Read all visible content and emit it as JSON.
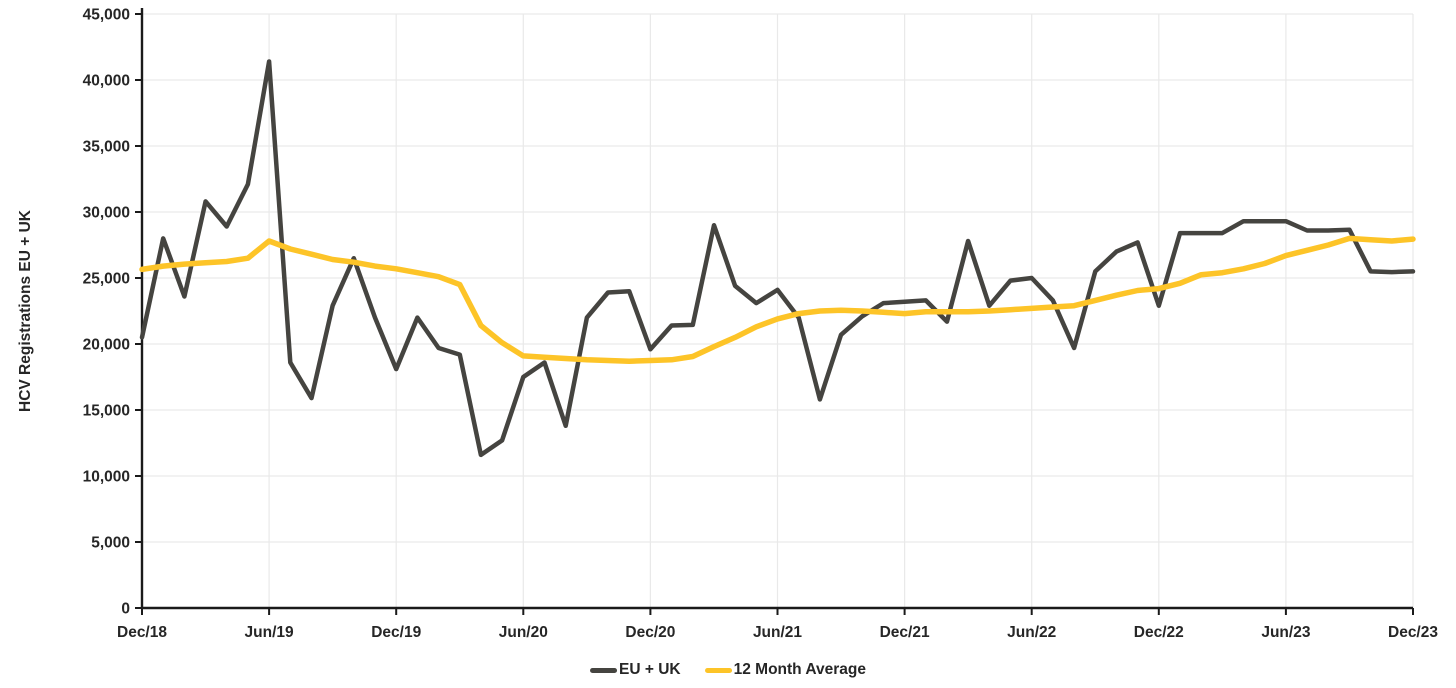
{
  "chart_data": {
    "type": "line",
    "title": "",
    "xlabel": "",
    "ylabel": "HCV Registrations  EU + UK",
    "ylim": [
      0,
      45000
    ],
    "ytick_step": 5000,
    "ytick_labels": [
      "0",
      "5,000",
      "10,000",
      "15,000",
      "20,000",
      "25,000",
      "30,000",
      "35,000",
      "40,000",
      "45,000"
    ],
    "xtick_every": 6,
    "xtick_labels": [
      "Dec/18",
      "Jun/19",
      "Dec/19",
      "Jun/20",
      "Dec/20",
      "Jun/21",
      "Dec/21",
      "Jun/22",
      "Dec/22",
      "Jun/23",
      "Dec/23"
    ],
    "grid": true,
    "grid_color": "#e9e9e9",
    "axis_color": "#1a1a1a",
    "legend_position": "bottom-center",
    "x": [
      "Dec/18",
      "Jan/19",
      "Feb/19",
      "Mar/19",
      "Apr/19",
      "May/19",
      "Jun/19",
      "Jul/19",
      "Aug/19",
      "Sep/19",
      "Oct/19",
      "Nov/19",
      "Dec/19",
      "Jan/20",
      "Feb/20",
      "Mar/20",
      "Apr/20",
      "May/20",
      "Jun/20",
      "Jul/20",
      "Aug/20",
      "Sep/20",
      "Oct/20",
      "Nov/20",
      "Dec/20",
      "Jan/21",
      "Feb/21",
      "Mar/21",
      "Apr/21",
      "May/21",
      "Jun/21",
      "Jul/21",
      "Aug/21",
      "Sep/21",
      "Oct/21",
      "Nov/21",
      "Dec/21",
      "Jan/22",
      "Feb/22",
      "Mar/22",
      "Apr/22",
      "May/22",
      "Jun/22",
      "Jul/22",
      "Aug/22",
      "Sep/22",
      "Oct/22",
      "Nov/22",
      "Dec/22",
      "Jan/23",
      "Feb/23",
      "Mar/23",
      "Apr/23",
      "May/23",
      "Jun/23",
      "Jul/23",
      "Aug/23",
      "Sep/23",
      "Oct/23",
      "Nov/23",
      "Dec/23"
    ],
    "series": [
      {
        "name": "EU + UK",
        "color": "#454440",
        "width": 4.5,
        "values": [
          20500,
          28000,
          23600,
          30800,
          28900,
          32100,
          41400,
          18600,
          15900,
          22900,
          26500,
          22000,
          18100,
          22000,
          19700,
          19200,
          11600,
          12700,
          17500,
          18600,
          13800,
          22000,
          23900,
          24000,
          19600,
          21400,
          21450,
          29000,
          24400,
          23100,
          24100,
          22000,
          15800,
          20700,
          22100,
          23100,
          23200,
          23300,
          21700,
          27800,
          22900,
          24800,
          25000,
          23300,
          19700,
          25500,
          27000,
          27700,
          22900,
          28400,
          28400,
          28400,
          29300,
          29300,
          29300,
          28600,
          28600,
          28650,
          25500,
          25450,
          25500
        ]
      },
      {
        "name": "12 Month Average",
        "color": "#fdc428",
        "width": 5.5,
        "values": [
          25650,
          25900,
          26050,
          26150,
          26250,
          26500,
          27800,
          27200,
          26800,
          26400,
          26200,
          25900,
          25700,
          25400,
          25100,
          24500,
          21400,
          20100,
          19100,
          19000,
          18900,
          18800,
          18750,
          18700,
          18750,
          18800,
          19050,
          19800,
          20500,
          21300,
          21900,
          22300,
          22500,
          22550,
          22500,
          22400,
          22300,
          22450,
          22450,
          22450,
          22500,
          22600,
          22700,
          22800,
          22900,
          23300,
          23700,
          24050,
          24200,
          24600,
          25250,
          25400,
          25700,
          26100,
          26700,
          27100,
          27500,
          28000,
          27900,
          27800,
          27950
        ]
      }
    ]
  }
}
